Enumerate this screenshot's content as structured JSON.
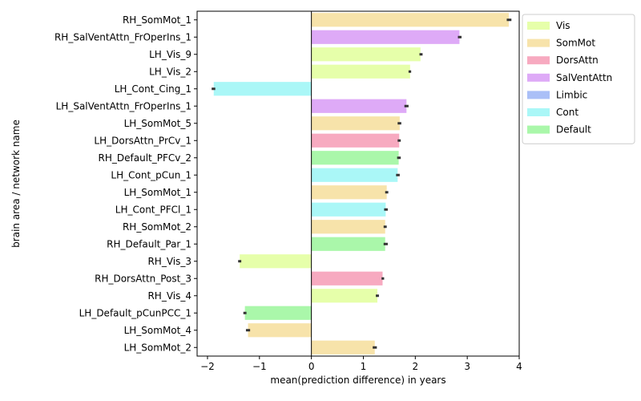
{
  "chart_data": {
    "type": "bar",
    "orientation": "horizontal",
    "xlabel": "mean(prediction difference) in years",
    "ylabel": "brain area / network name",
    "xlim": [
      -2.2,
      4.0
    ],
    "xticks": [
      -2,
      -1,
      0,
      1,
      2,
      3,
      4
    ],
    "grid": false,
    "legend_position": "upper-right-outside",
    "legend": [
      {
        "label": "Vis",
        "color": "#e6ffaa"
      },
      {
        "label": "SomMot",
        "color": "#f7e3aa"
      },
      {
        "label": "DorsAttn",
        "color": "#f7aac0"
      },
      {
        "label": "SalVentAttn",
        "color": "#deaaf7"
      },
      {
        "label": "Limbic",
        "color": "#aabff7"
      },
      {
        "label": "Cont",
        "color": "#aaf7f7"
      },
      {
        "label": "Default",
        "color": "#aaf7aa"
      }
    ],
    "bars": [
      {
        "category": "RH_SomMot_1",
        "value": 3.8,
        "err_low": 3.76,
        "err_high": 3.85,
        "network": "SomMot"
      },
      {
        "category": "RH_SalVentAttn_FrOperIns_1",
        "value": 2.85,
        "err_low": 2.82,
        "err_high": 2.89,
        "network": "SalVentAttn"
      },
      {
        "category": "LH_Vis_9",
        "value": 2.1,
        "err_low": 2.08,
        "err_high": 2.14,
        "network": "Vis"
      },
      {
        "category": "LH_Vis_2",
        "value": 1.9,
        "err_low": 1.87,
        "err_high": 1.92,
        "network": "Vis"
      },
      {
        "category": "LH_Cont_Cing_1",
        "value": -1.88,
        "err_low": -1.92,
        "err_high": -1.85,
        "network": "Cont"
      },
      {
        "category": "LH_SalVentAttn_FrOperIns_1",
        "value": 1.83,
        "err_low": 1.79,
        "err_high": 1.87,
        "network": "SalVentAttn"
      },
      {
        "category": "LH_SomMot_5",
        "value": 1.7,
        "err_low": 1.66,
        "err_high": 1.73,
        "network": "SomMot"
      },
      {
        "category": "LH_DorsAttn_PrCv_1",
        "value": 1.69,
        "err_low": 1.66,
        "err_high": 1.72,
        "network": "DorsAttn"
      },
      {
        "category": "RH_Default_PFCv_2",
        "value": 1.68,
        "err_low": 1.65,
        "err_high": 1.72,
        "network": "Default"
      },
      {
        "category": "LH_Cont_pCun_1",
        "value": 1.66,
        "err_low": 1.63,
        "err_high": 1.7,
        "network": "Cont"
      },
      {
        "category": "LH_SomMot_1",
        "value": 1.45,
        "err_low": 1.42,
        "err_high": 1.48,
        "network": "SomMot"
      },
      {
        "category": "LH_Cont_PFCl_1",
        "value": 1.43,
        "err_low": 1.4,
        "err_high": 1.47,
        "network": "Cont"
      },
      {
        "category": "RH_SomMot_2",
        "value": 1.42,
        "err_low": 1.39,
        "err_high": 1.45,
        "network": "SomMot"
      },
      {
        "category": "RH_Default_Par_1",
        "value": 1.42,
        "err_low": 1.39,
        "err_high": 1.47,
        "network": "Default"
      },
      {
        "category": "RH_Vis_3",
        "value": -1.38,
        "err_low": -1.41,
        "err_high": -1.35,
        "network": "Vis"
      },
      {
        "category": "RH_DorsAttn_Post_3",
        "value": 1.37,
        "err_low": 1.35,
        "err_high": 1.4,
        "network": "DorsAttn"
      },
      {
        "category": "RH_Vis_4",
        "value": 1.27,
        "err_low": 1.24,
        "err_high": 1.3,
        "network": "Vis"
      },
      {
        "category": "LH_Default_pCunPCC_1",
        "value": -1.28,
        "err_low": -1.31,
        "err_high": -1.25,
        "network": "Default"
      },
      {
        "category": "LH_SomMot_4",
        "value": -1.22,
        "err_low": -1.26,
        "err_high": -1.18,
        "network": "SomMot"
      },
      {
        "category": "LH_SomMot_2",
        "value": 1.22,
        "err_low": 1.18,
        "err_high": 1.26,
        "network": "SomMot"
      }
    ]
  }
}
